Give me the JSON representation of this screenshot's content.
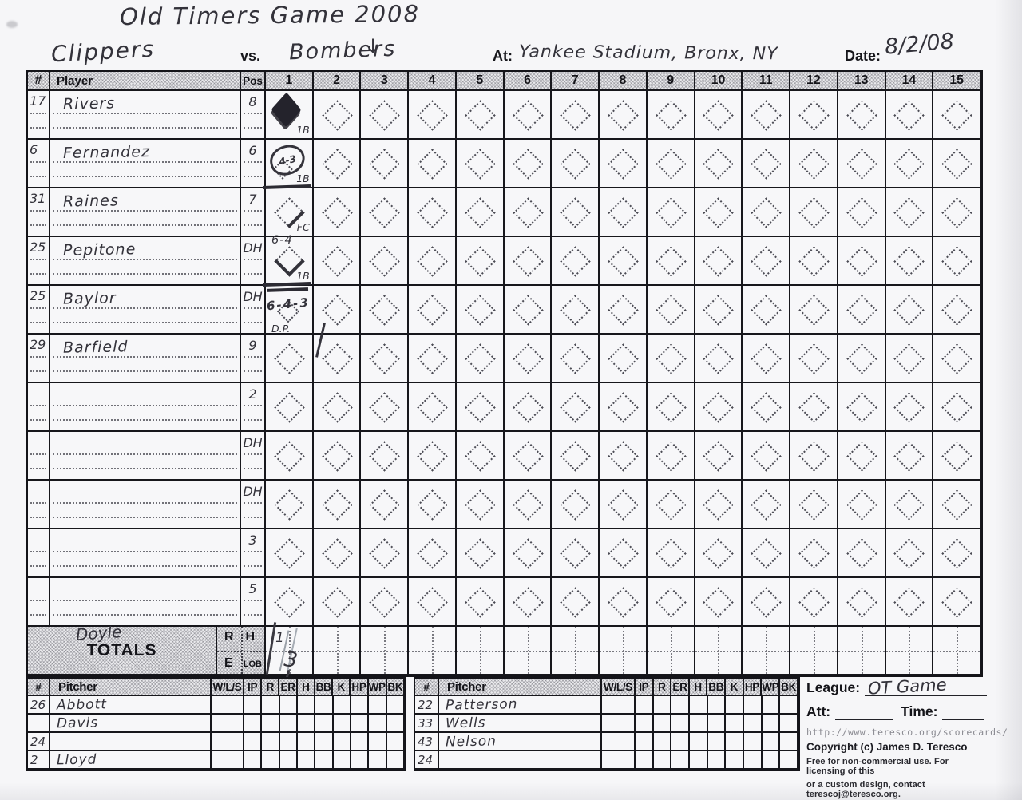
{
  "page": {
    "title": "Old Timers Game 2008",
    "away_team": "Clippers",
    "vs_label": "vs.",
    "home_team": "Bombers",
    "home_mark": "↓",
    "at_label": "At:",
    "location": "Yankee Stadium, Bronx, NY",
    "date_label": "Date:",
    "date": "8/2/08"
  },
  "grid": {
    "headers": {
      "num": "#",
      "player": "Player",
      "pos": "Pos"
    },
    "innings": [
      "1",
      "2",
      "3",
      "4",
      "5",
      "6",
      "7",
      "8",
      "9",
      "10",
      "11",
      "12",
      "13",
      "14",
      "15"
    ],
    "rows": [
      {
        "num": "17",
        "player": "Rivers",
        "pos": "8",
        "marks": [
          {
            "inning": 1,
            "type": "filled",
            "note": "1B"
          }
        ]
      },
      {
        "num": "6",
        "player": "Fernandez",
        "pos": "6",
        "marks": [
          {
            "inning": 1,
            "type": "circle",
            "text": "4-3",
            "note": "1B"
          }
        ]
      },
      {
        "num": "31",
        "player": "Raines",
        "pos": "7",
        "marks": [
          {
            "inning": 1,
            "type": "edge-tr",
            "note": "FC",
            "topline": 1
          }
        ]
      },
      {
        "num": "25",
        "player": "Pepitone",
        "pos": "DH",
        "marks": [
          {
            "inning": 1,
            "type": "edge-b",
            "text": "6-4",
            "note": "1B"
          }
        ]
      },
      {
        "num": "25",
        "player": "Baylor",
        "pos": "DH",
        "marks": [
          {
            "inning": 1,
            "type": "across",
            "text": "6-4-3",
            "note": "D.P.",
            "topline": 2
          }
        ]
      },
      {
        "num": "29",
        "player": "Barfield",
        "pos": "9",
        "marks": [
          {
            "inning": 2,
            "type": "slash"
          }
        ]
      },
      {
        "num": "",
        "player": "",
        "pos": "2",
        "marks": []
      },
      {
        "num": "",
        "player": "",
        "pos": "DH",
        "marks": []
      },
      {
        "num": "",
        "player": "",
        "pos": "DH",
        "marks": []
      },
      {
        "num": "",
        "player": "",
        "pos": "3",
        "marks": []
      },
      {
        "num": "",
        "player": "",
        "pos": "5",
        "marks": []
      }
    ]
  },
  "totals": {
    "label": "TOTALS",
    "handwritten": "Doyle",
    "legend": {
      "r": "R",
      "h": "H",
      "e": "E",
      "lob": "LOB"
    },
    "inning1_top": "1",
    "scribble": "3"
  },
  "pitchers": {
    "headers": {
      "num": "#",
      "name": "Pitcher",
      "stats": [
        "W/L/S",
        "IP",
        "R",
        "ER",
        "H",
        "BB",
        "K",
        "HP",
        "WP",
        "BK"
      ]
    },
    "left": [
      {
        "num": "26",
        "name": "Abbott"
      },
      {
        "num": "",
        "name": "Davis"
      },
      {
        "num": "24",
        "name": ""
      },
      {
        "num": "2",
        "name": "Lloyd"
      }
    ],
    "right": [
      {
        "num": "22",
        "name": "Patterson"
      },
      {
        "num": "33",
        "name": "Wells"
      },
      {
        "num": "43",
        "name": "Nelson"
      },
      {
        "num": "24",
        "name": ""
      }
    ]
  },
  "footer": {
    "league_label": "League:",
    "league": "OT Game",
    "att_label": "Att:",
    "time_label": "Time:",
    "url": "http://www.teresco.org/scorecards/",
    "copyright": "Copyright (c) James D. Teresco",
    "line1": "Free for non-commercial use. For licensing of this",
    "line2": "or a custom design, contact terescoj@teresco.org."
  }
}
